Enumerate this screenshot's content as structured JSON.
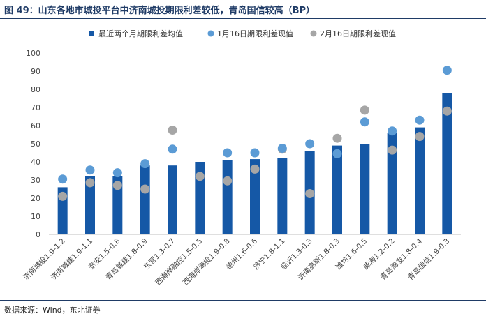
{
  "title": "图 49：山东各地市城投平台中济南城投期限利差较低，青岛国信较高（BP）",
  "source": "数据来源：Wind，东北证券",
  "colors": {
    "bar": "#1558a6",
    "jan16": "#5b9bd5",
    "feb16": "#a6a6a6",
    "title": "#1f3b66"
  },
  "chart_data": {
    "type": "bar",
    "categories": [
      "济南城投1.9-1.2",
      "济南城建1.9-1.1",
      "泰安1.5-0.8",
      "青岛城建1.8-0.9",
      "东营1.3-0.7",
      "西海岸融控1.5-0.5",
      "西海岸海投1.9-0.8",
      "德州1.6-0.6",
      "济宁1.8-1.1",
      "临沂1.3-0.3",
      "济南高新1.8-0.3",
      "潍坊1.6-0.5",
      "威海1.2-0.2",
      "青岛海发1.8-0.4",
      "青岛国信1.9-0.3"
    ],
    "series": [
      {
        "name": "最近两个月期限利差均值",
        "kind": "bar",
        "values": [
          26,
          32,
          32,
          38,
          38,
          40,
          41,
          41.5,
          42,
          46,
          49,
          50,
          56,
          59,
          78
        ]
      },
      {
        "name": "1月16日期限利差现值",
        "kind": "point",
        "values": [
          30.5,
          35.5,
          34,
          39,
          47,
          null,
          45,
          45,
          47.5,
          50,
          44.5,
          62,
          57,
          63,
          90.5
        ]
      },
      {
        "name": "2月16日期限利差现值",
        "kind": "point",
        "values": [
          21,
          28.5,
          27,
          25,
          57.5,
          32,
          29.5,
          36,
          47,
          22.5,
          53,
          68.5,
          46.5,
          54,
          68
        ]
      }
    ],
    "ylim": [
      0,
      100
    ],
    "yticks": [
      0,
      10,
      20,
      30,
      40,
      50,
      60,
      70,
      80,
      90,
      100
    ],
    "legend_position": "top"
  }
}
